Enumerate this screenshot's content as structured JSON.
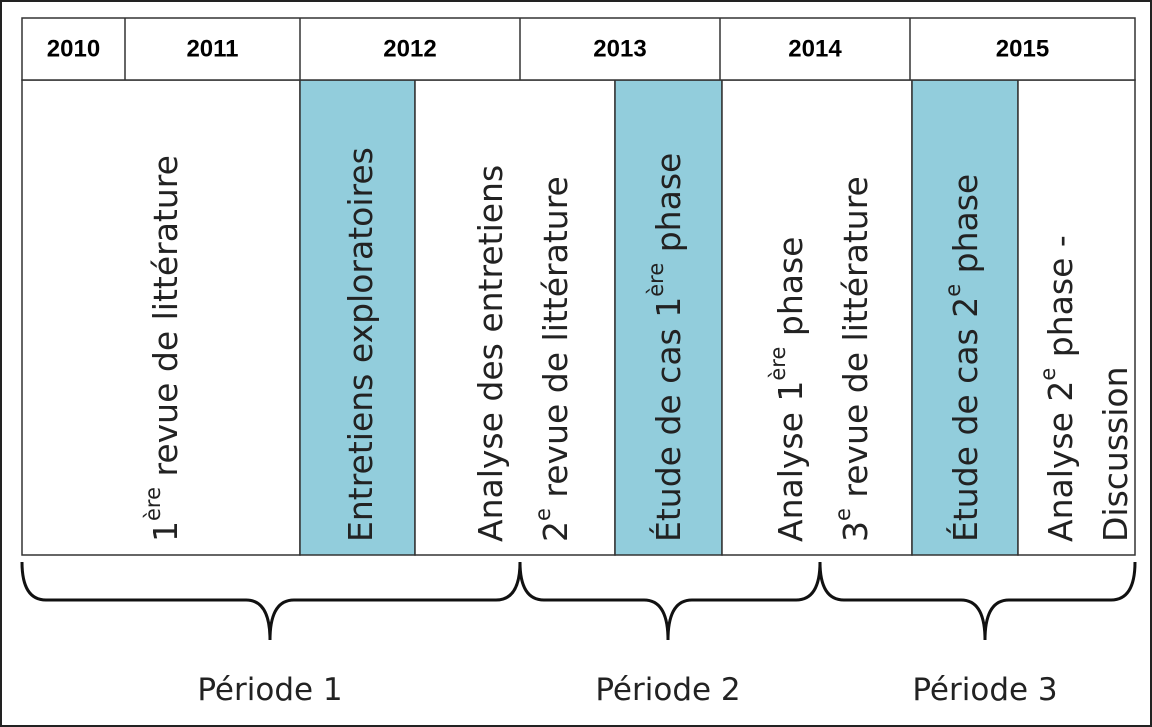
{
  "years": [
    "2010",
    "2011",
    "2012",
    "2013",
    "2014",
    "2015"
  ],
  "activities": [
    {
      "lines": [
        [
          "1",
          "ère",
          " revue de littérature"
        ]
      ]
    },
    {
      "lines": [
        [
          "Entretiens exploratoires"
        ]
      ]
    },
    {
      "lines": [
        [
          "Analyse des entretiens"
        ],
        [
          "2",
          "e",
          " revue de littérature"
        ]
      ]
    },
    {
      "lines": [
        [
          "Étude de cas 1",
          "ère",
          " phase"
        ]
      ]
    },
    {
      "lines": [
        [
          "Analyse 1",
          "ère",
          " phase"
        ],
        [
          "3",
          "e",
          " revue de littérature"
        ]
      ]
    },
    {
      "lines": [
        [
          "Étude de cas 2",
          "e",
          " phase"
        ]
      ]
    },
    {
      "lines": [
        [
          "Analyse 2",
          "e",
          " phase -"
        ],
        [
          "Discussion"
        ]
      ]
    }
  ],
  "periods": [
    "Période 1",
    "Période 2",
    "Période 3"
  ]
}
